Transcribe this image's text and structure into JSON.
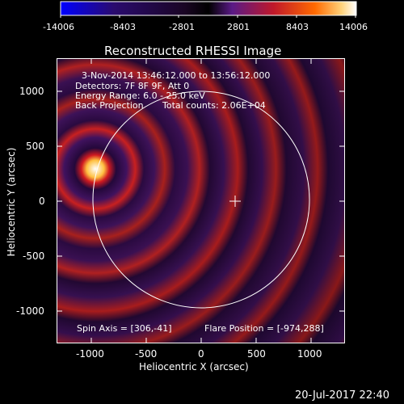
{
  "colorbar": {
    "ticks": [
      "-14006",
      "-8403",
      "-2801",
      "2801",
      "8403",
      "14006"
    ],
    "colors": [
      "#0000ff",
      "#2a0b6e",
      "#000000",
      "#5a1a86",
      "#c0182a",
      "#ff5a00",
      "#ffd27a",
      "#ffffff"
    ]
  },
  "title": "Reconstructed RHESSI Image",
  "info": {
    "time_range": "3-Nov-2014 13:46:12.000 to 13:56:12.000",
    "detectors": "Detectors: 7F 8F 9F, Att 0",
    "energy_range": "Energy Range: 6.0 - 25.0 keV",
    "method": "Back Projection",
    "total_counts": "Total counts: 2.06E+04",
    "spin_axis": "Spin Axis = [306,-41]",
    "flare_position": "Flare Position = [-974,288]"
  },
  "axes": {
    "xlabel": "Heliocentric X (arcsec)",
    "ylabel": "Heliocentric Y (arcsec)",
    "xticks": [
      "-1000",
      "-500",
      "0",
      "500",
      "1000"
    ],
    "yticks": [
      "1000",
      "500",
      "0",
      "-500",
      "-1000"
    ]
  },
  "footer_date": "20-Jul-2017 22:40"
}
